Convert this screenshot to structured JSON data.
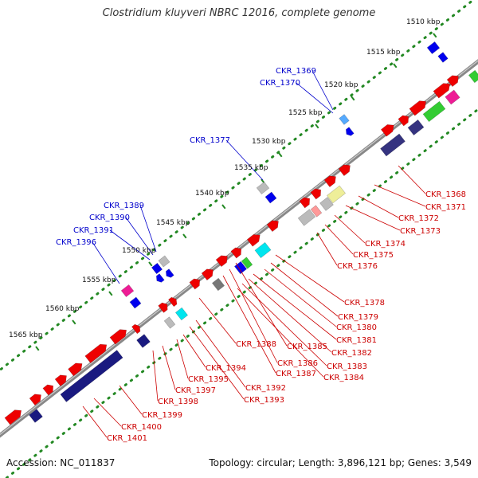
{
  "header": {
    "title": "Clostridium kluyveri NBRC 12016, complete genome"
  },
  "footer": {
    "accession": "Accession: NC_011837",
    "summary": "Topology: circular; Length: 3,896,121 bp; Genes: 3,549"
  },
  "colors": {
    "forward_gene": "#ee0000",
    "blue_gene": "#0000ee",
    "navy_gene": "#1a1a80",
    "dark_navy_gene": "#353380",
    "cyan_gene": "#00e5ee",
    "light_blue_gene": "#55aaff",
    "magenta_gene": "#ee1c95",
    "green_gene": "#33cc33",
    "grey_gene": "#bbbbbb",
    "dark_grey_gene": "#777777",
    "yellow_gene": "#eeee99",
    "salmon_gene": "#ff9999",
    "backbone": "#888888",
    "tick": "#228822",
    "label_blue": "#0000cc",
    "label_red": "#cc0000"
  },
  "scale_ticks": [
    {
      "label": "1510 kbp"
    },
    {
      "label": "1515 kbp"
    },
    {
      "label": "1520 kbp"
    },
    {
      "label": "1525 kbp"
    },
    {
      "label": "1530 kbp"
    },
    {
      "label": "1535 kbp"
    },
    {
      "label": "1540 kbp"
    },
    {
      "label": "1545 kbp"
    },
    {
      "label": "1550 kbp"
    },
    {
      "label": "1555 kbp"
    },
    {
      "label": "1560 kbp"
    },
    {
      "label": "1565 kbp"
    }
  ],
  "blue_labels": [
    {
      "label": "CKR_1369"
    },
    {
      "label": "CKR_1370"
    },
    {
      "label": "CKR_1377"
    },
    {
      "label": "CKR_1389"
    },
    {
      "label": "CKR_1390"
    },
    {
      "label": "CKR_1391"
    },
    {
      "label": "CKR_1396"
    }
  ],
  "red_labels": [
    {
      "label": "CKR_1368"
    },
    {
      "label": "CKR_1371"
    },
    {
      "label": "CKR_1372"
    },
    {
      "label": "CKR_1373"
    },
    {
      "label": "CKR_1374"
    },
    {
      "label": "CKR_1375"
    },
    {
      "label": "CKR_1376"
    },
    {
      "label": "CKR_1378"
    },
    {
      "label": "CKR_1379"
    },
    {
      "label": "CKR_1380"
    },
    {
      "label": "CKR_1381"
    },
    {
      "label": "CKR_1382"
    },
    {
      "label": "CKR_1383"
    },
    {
      "label": "CKR_1384"
    },
    {
      "label": "CKR_1385"
    },
    {
      "label": "CKR_1386"
    },
    {
      "label": "CKR_1387"
    },
    {
      "label": "CKR_1388"
    },
    {
      "label": "CKR_1392"
    },
    {
      "label": "CKR_1393"
    },
    {
      "label": "CKR_1394"
    },
    {
      "label": "CKR_1395"
    },
    {
      "label": "CKR_1397"
    },
    {
      "label": "CKR_1398"
    },
    {
      "label": "CKR_1399"
    },
    {
      "label": "CKR_1400"
    },
    {
      "label": "CKR_1401"
    }
  ]
}
